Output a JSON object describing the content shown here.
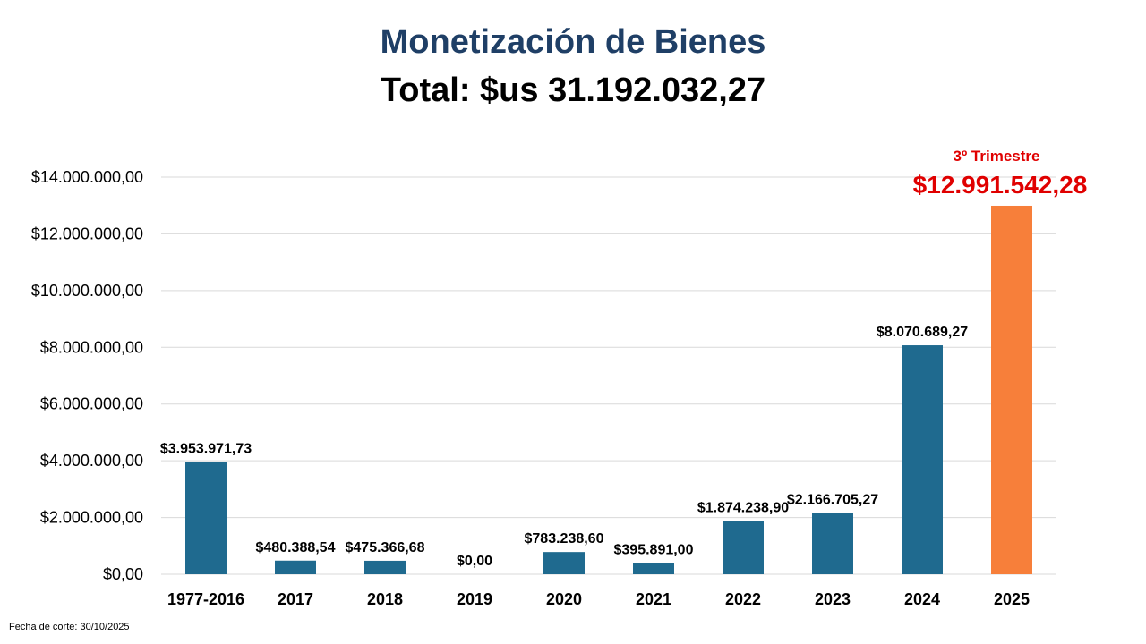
{
  "title": "Monetización de Bienes",
  "subtitle": "Total: $us 31.192.032,27",
  "footnote": "Fecha de corte: 30/10/2025",
  "colors": {
    "bar": "#1f6a8f",
    "highlight_bar": "#f77f3a",
    "highlight_text": "#e00000",
    "title": "#1f3f66",
    "grid": "#d9d9d9"
  },
  "chart_data": {
    "type": "bar",
    "title": "Monetización de Bienes",
    "xlabel": "",
    "ylabel": "",
    "ylim": [
      0,
      14000000
    ],
    "grid": true,
    "y_ticks": [
      {
        "value": 0,
        "label": "$0,00"
      },
      {
        "value": 2000000,
        "label": "$2.000.000,00"
      },
      {
        "value": 4000000,
        "label": "$4.000.000,00"
      },
      {
        "value": 6000000,
        "label": "$6.000.000,00"
      },
      {
        "value": 8000000,
        "label": "$8.000.000,00"
      },
      {
        "value": 10000000,
        "label": "$10.000.000,00"
      },
      {
        "value": 12000000,
        "label": "$12.000.000,00"
      },
      {
        "value": 14000000,
        "label": "$14.000.000,00"
      }
    ],
    "categories": [
      "1977-2016",
      "2017",
      "2018",
      "2019",
      "2020",
      "2021",
      "2022",
      "2023",
      "2024",
      "2025"
    ],
    "values": [
      3953971.73,
      480388.54,
      475366.68,
      0,
      783238.6,
      395891.0,
      1874238.9,
      2166705.27,
      8070689.27,
      12991542.28
    ],
    "data_labels": [
      "$3.953.971,73",
      "$480.388,54",
      "$475.366,68",
      "$0,00",
      "$783.238,60",
      "$395.891,00",
      "$1.874.238,90",
      "$2.166.705,27",
      "$8.070.689,27",
      "$12.991.542,28"
    ],
    "highlight": {
      "index": 9,
      "note": "3º Trimestre"
    }
  }
}
